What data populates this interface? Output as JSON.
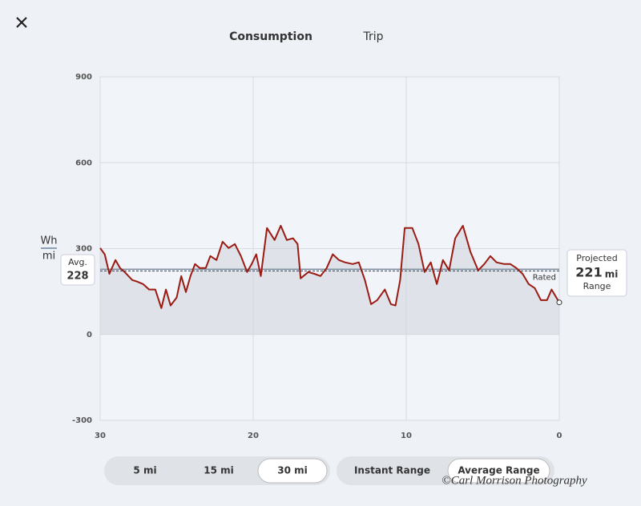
{
  "header": {
    "tabs": [
      "Consumption",
      "Trip"
    ],
    "selected": 0
  },
  "chart_data": {
    "type": "line",
    "y_unit_top": "Wh",
    "y_unit_bottom": "mi",
    "x": [
      30.0,
      29.7,
      29.4,
      29.0,
      28.7,
      28.4,
      27.9,
      27.6,
      27.2,
      26.8,
      26.4,
      26.0,
      25.7,
      25.4,
      25.0,
      24.7,
      24.4,
      24.1,
      23.8,
      23.5,
      23.1,
      22.8,
      22.4,
      22.0,
      21.6,
      21.2,
      20.8,
      20.4,
      20.1,
      19.8,
      19.5,
      19.1,
      18.6,
      18.2,
      17.8,
      17.4,
      17.1,
      16.9,
      16.4,
      16.0,
      15.6,
      15.2,
      14.8,
      14.4,
      14.0,
      13.5,
      13.1,
      12.7,
      12.3,
      11.9,
      11.4,
      11.0,
      10.7,
      10.4,
      10.1,
      9.6,
      9.2,
      8.8,
      8.4,
      8.0,
      7.6,
      7.2,
      6.8,
      6.3,
      5.8,
      5.3,
      4.9,
      4.5,
      4.1,
      3.6,
      3.2,
      2.8,
      2.4,
      2.0,
      1.6,
      1.2,
      0.8,
      0.5,
      0.0
    ],
    "series": [
      {
        "color": "#9b1a12",
        "values": [
          302,
          280,
          212,
          260,
          232,
          218,
          190,
          185,
          176,
          157,
          157,
          92,
          157,
          101,
          129,
          204,
          148,
          204,
          246,
          232,
          232,
          274,
          260,
          324,
          302,
          316,
          274,
          218,
          246,
          280,
          204,
          372,
          330,
          380,
          330,
          336,
          316,
          196,
          218,
          212,
          204,
          232,
          280,
          260,
          252,
          246,
          252,
          190,
          106,
          120,
          157,
          106,
          101,
          190,
          372,
          372,
          316,
          218,
          252,
          176,
          260,
          224,
          336,
          380,
          288,
          224,
          246,
          274,
          252,
          246,
          246,
          232,
          212,
          176,
          162,
          120,
          120,
          157,
          112
        ]
      }
    ],
    "xlim": [
      30,
      0
    ],
    "xticks": [
      30,
      20,
      10,
      0
    ],
    "ylim": [
      -300,
      900
    ],
    "yticks": [
      -300,
      0,
      300,
      600,
      900
    ],
    "grid": true,
    "average": {
      "label": "Avg.",
      "value": 228
    },
    "rated": {
      "label": "Rated",
      "value": 222
    },
    "projected": {
      "label_top": "Projected",
      "value": 221,
      "unit": "mi",
      "label_bottom": "Range"
    }
  },
  "controls": {
    "distance": [
      "5 mi",
      "15 mi",
      "30 mi"
    ],
    "distance_selected": 2,
    "range_mode": [
      "Instant Range",
      "Average Range"
    ],
    "range_selected": 1
  },
  "watermark": "©Carl Morrison Photography"
}
